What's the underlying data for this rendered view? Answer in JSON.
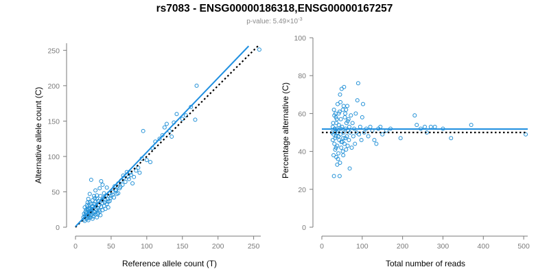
{
  "figure": {
    "title": "rs7083 - ENSG00000186318,ENSG00000167257",
    "subtitle_prefix": "p-value: 5.49×10",
    "subtitle_exponent": "-3"
  },
  "colors": {
    "points": "#1f8fd6",
    "fit_line": "#1f8fe0",
    "reference_line": "#000000",
    "axis": "#7a7a7a"
  },
  "chart_data": [
    {
      "type": "scatter",
      "xlabel": "Reference allele count (T)",
      "ylabel": "Alternative allele count (C)",
      "xlim": [
        0,
        260
      ],
      "ylim": [
        0,
        260
      ],
      "xticks": [
        0,
        50,
        100,
        150,
        200,
        250
      ],
      "yticks": [
        0,
        50,
        100,
        150,
        200,
        250
      ],
      "grid": false,
      "fit_line": {
        "x": [
          0,
          243
        ],
        "y": [
          1,
          256
        ]
      },
      "reference_line": {
        "x": [
          0,
          258
        ],
        "y": [
          0,
          258
        ]
      },
      "points": [
        [
          12,
          11
        ],
        [
          13,
          15
        ],
        [
          14,
          18
        ],
        [
          15,
          20
        ],
        [
          16,
          12
        ],
        [
          17,
          24
        ],
        [
          18,
          13
        ],
        [
          19,
          16
        ],
        [
          20,
          22
        ],
        [
          21,
          14
        ],
        [
          15,
          25
        ],
        [
          13,
          28
        ],
        [
          16,
          31
        ],
        [
          17,
          35
        ],
        [
          18,
          10
        ],
        [
          19,
          19
        ],
        [
          20,
          27
        ],
        [
          22,
          17
        ],
        [
          23,
          29
        ],
        [
          24,
          12
        ],
        [
          25,
          15
        ],
        [
          26,
          21
        ],
        [
          27,
          33
        ],
        [
          28,
          18
        ],
        [
          29,
          25
        ],
        [
          30,
          14
        ],
        [
          31,
          27
        ],
        [
          32,
          20
        ],
        [
          33,
          31
        ],
        [
          34,
          22
        ],
        [
          35,
          17
        ],
        [
          36,
          29
        ],
        [
          37,
          38
        ],
        [
          38,
          24
        ],
        [
          39,
          42
        ],
        [
          40,
          30
        ],
        [
          41,
          35
        ],
        [
          42,
          26
        ],
        [
          43,
          45
        ],
        [
          44,
          33
        ],
        [
          45,
          40
        ],
        [
          46,
          28
        ],
        [
          47,
          48
        ],
        [
          48,
          37
        ],
        [
          50,
          44
        ],
        [
          52,
          50
        ],
        [
          54,
          42
        ],
        [
          55,
          58
        ],
        [
          57,
          53
        ],
        [
          58,
          47
        ],
        [
          60,
          62
        ],
        [
          62,
          55
        ],
        [
          64,
          66
        ],
        [
          66,
          60
        ],
        [
          68,
          70
        ],
        [
          70,
          64
        ],
        [
          72,
          78
        ],
        [
          75,
          68
        ],
        [
          78,
          74
        ],
        [
          80,
          62
        ],
        [
          82,
          71
        ],
        [
          85,
          80
        ],
        [
          88,
          84
        ],
        [
          90,
          77
        ],
        [
          93,
          97
        ],
        [
          95,
          136
        ],
        [
          100,
          95
        ],
        [
          105,
          92
        ],
        [
          108,
          112
        ],
        [
          112,
          121
        ],
        [
          118,
          125
        ],
        [
          122,
          130
        ],
        [
          125,
          141
        ],
        [
          128,
          146
        ],
        [
          132,
          136
        ],
        [
          135,
          128
        ],
        [
          138,
          148
        ],
        [
          142,
          160
        ],
        [
          150,
          153
        ],
        [
          155,
          158
        ],
        [
          162,
          170
        ],
        [
          168,
          152
        ],
        [
          170,
          200
        ],
        [
          22,
          67
        ],
        [
          18,
          40
        ],
        [
          20,
          47
        ],
        [
          24,
          38
        ],
        [
          28,
          52
        ],
        [
          30,
          45
        ],
        [
          34,
          55
        ],
        [
          36,
          65
        ],
        [
          40,
          48
        ],
        [
          44,
          56
        ],
        [
          38,
          60
        ],
        [
          26,
          44
        ],
        [
          16,
          16
        ],
        [
          19,
          21
        ],
        [
          21,
          23
        ],
        [
          23,
          26
        ],
        [
          25,
          19
        ],
        [
          27,
          22
        ],
        [
          29,
          30
        ],
        [
          31,
          18
        ],
        [
          33,
          24
        ],
        [
          14,
          22
        ],
        [
          12,
          19
        ],
        [
          17,
          29
        ],
        [
          22,
          33
        ],
        [
          27,
          41
        ],
        [
          32,
          37
        ],
        [
          18,
          26
        ],
        [
          20,
          35
        ],
        [
          24,
          30
        ],
        [
          28,
          36
        ],
        [
          30,
          40
        ],
        [
          35,
          44
        ],
        [
          38,
          34
        ],
        [
          42,
          39
        ],
        [
          46,
          36
        ],
        [
          49,
          41
        ],
        [
          52,
          46
        ],
        [
          56,
          52
        ],
        [
          60,
          48
        ],
        [
          63,
          57
        ],
        [
          67,
          73
        ],
        [
          74,
          71
        ],
        [
          77,
          77
        ],
        [
          11,
          14
        ],
        [
          13,
          9
        ],
        [
          258,
          251
        ]
      ]
    },
    {
      "type": "scatter",
      "xlabel": "Total number of reads",
      "ylabel": "Percentage alternative (C)",
      "xlim": [
        0,
        510
      ],
      "ylim": [
        0,
        100
      ],
      "xticks": [
        0,
        100,
        200,
        300,
        400,
        500
      ],
      "yticks": [
        0,
        20,
        40,
        60,
        80,
        100
      ],
      "grid": false,
      "fit_line": {
        "x": [
          0,
          510
        ],
        "y": [
          51.8,
          51.8
        ]
      },
      "reference_line": {
        "x": [
          0,
          510
        ],
        "y": [
          50,
          50
        ]
      },
      "points": [
        [
          25,
          50
        ],
        [
          27,
          46
        ],
        [
          28,
          55
        ],
        [
          29,
          38
        ],
        [
          30,
          62
        ],
        [
          31,
          44
        ],
        [
          32,
          52
        ],
        [
          33,
          41
        ],
        [
          34,
          60
        ],
        [
          35,
          48
        ],
        [
          36,
          37
        ],
        [
          37,
          57
        ],
        [
          38,
          43
        ],
        [
          39,
          65
        ],
        [
          40,
          51
        ],
        [
          41,
          39
        ],
        [
          42,
          54
        ],
        [
          43,
          46
        ],
        [
          44,
          61
        ],
        [
          45,
          34
        ],
        [
          46,
          49
        ],
        [
          47,
          57
        ],
        [
          48,
          42
        ],
        [
          49,
          73
        ],
        [
          50,
          53
        ],
        [
          51,
          45
        ],
        [
          52,
          62
        ],
        [
          53,
          38
        ],
        [
          54,
          50
        ],
        [
          55,
          74
        ],
        [
          56,
          44
        ],
        [
          57,
          58
        ],
        [
          58,
          47
        ],
        [
          59,
          52
        ],
        [
          60,
          41
        ],
        [
          61,
          55
        ],
        [
          62,
          48
        ],
        [
          63,
          64
        ],
        [
          64,
          43
        ],
        [
          65,
          51
        ],
        [
          66,
          57
        ],
        [
          67,
          46
        ],
        [
          68,
          53
        ],
        [
          69,
          31
        ],
        [
          70,
          50
        ],
        [
          72,
          59
        ],
        [
          74,
          42
        ],
        [
          76,
          55
        ],
        [
          78,
          48
        ],
        [
          80,
          52
        ],
        [
          82,
          44
        ],
        [
          84,
          60
        ],
        [
          86,
          50
        ],
        [
          88,
          67
        ],
        [
          90,
          76
        ],
        [
          92,
          49
        ],
        [
          95,
          53
        ],
        [
          98,
          46
        ],
        [
          100,
          58
        ],
        [
          102,
          65
        ],
        [
          105,
          50
        ],
        [
          110,
          52
        ],
        [
          115,
          48
        ],
        [
          120,
          53
        ],
        [
          125,
          51
        ],
        [
          130,
          46
        ],
        [
          135,
          44
        ],
        [
          140,
          52
        ],
        [
          145,
          53
        ],
        [
          150,
          49
        ],
        [
          160,
          51
        ],
        [
          170,
          52
        ],
        [
          195,
          47
        ],
        [
          230,
          59
        ],
        [
          235,
          54
        ],
        [
          245,
          52
        ],
        [
          255,
          53
        ],
        [
          260,
          50
        ],
        [
          270,
          53
        ],
        [
          280,
          53
        ],
        [
          300,
          52
        ],
        [
          320,
          47
        ],
        [
          370,
          54
        ],
        [
          505,
          49
        ],
        [
          30,
          27
        ],
        [
          35,
          58
        ],
        [
          40,
          36
        ],
        [
          45,
          70
        ],
        [
          32,
          50
        ],
        [
          36,
          55
        ],
        [
          42,
          60
        ],
        [
          48,
          45
        ],
        [
          52,
          40
        ],
        [
          58,
          60
        ],
        [
          64,
          56
        ],
        [
          38,
          33
        ],
        [
          44,
          27
        ],
        [
          46,
          66
        ],
        [
          54,
          64
        ],
        [
          60,
          62
        ],
        [
          33,
          47
        ],
        [
          37,
          52
        ],
        [
          41,
          48
        ],
        [
          47,
          52
        ],
        [
          53,
          47
        ],
        [
          27,
          53
        ],
        [
          29,
          49
        ],
        [
          31,
          59
        ],
        [
          35,
          42
        ],
        [
          39,
          50
        ]
      ]
    }
  ]
}
